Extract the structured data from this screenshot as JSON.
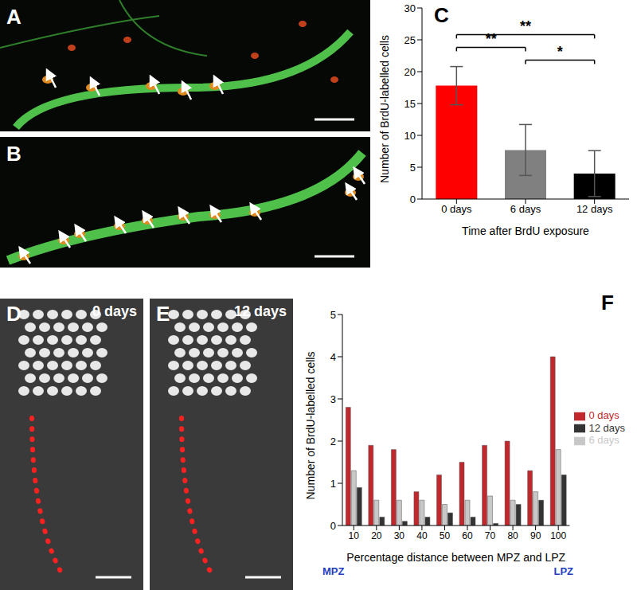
{
  "image_panels": [
    {
      "label": "A"
    },
    {
      "label": "B"
    },
    {
      "label": "D",
      "caption": "0 days"
    },
    {
      "label": "E",
      "caption": "12 days"
    }
  ],
  "chart_data": [
    {
      "type": "bar",
      "panel_label": "C",
      "categories": [
        "0 days",
        "6 days",
        "12 days"
      ],
      "values": [
        17.8,
        7.7,
        4.0
      ],
      "errors": [
        3.0,
        4.0,
        3.6
      ],
      "colors": [
        "#ff0000",
        "#808080",
        "#000000"
      ],
      "ylim": [
        0,
        30
      ],
      "yticks": [
        0,
        5,
        10,
        15,
        20,
        25,
        30
      ],
      "x_label": "Time after BrdU exposure",
      "y_label": "Number of BrdU-labelled cells",
      "significance": [
        {
          "from": "6 days",
          "to": "12 days",
          "label": "*"
        },
        {
          "from": "0 days",
          "to": "6 days",
          "label": "**"
        },
        {
          "from": "0 days",
          "to": "12 days",
          "label": "**"
        }
      ]
    },
    {
      "type": "bar",
      "panel_label": "F",
      "categories": [
        10,
        20,
        30,
        40,
        50,
        60,
        70,
        80,
        90,
        100
      ],
      "series": [
        {
          "name": "0 days",
          "color": "#c0282d",
          "values": [
            2.8,
            1.9,
            1.8,
            0.8,
            1.2,
            1.5,
            1.9,
            2.0,
            1.3,
            4.0
          ]
        },
        {
          "name": "6 days",
          "color": "#c8c8c8",
          "values": [
            1.3,
            0.6,
            0.6,
            0.6,
            0.5,
            0.6,
            0.7,
            0.6,
            0.8,
            1.8
          ]
        },
        {
          "name": "12 days",
          "color": "#333333",
          "values": [
            0.9,
            0.2,
            0.1,
            0.2,
            0.3,
            0.2,
            0.05,
            0.5,
            0.6,
            1.2
          ]
        }
      ],
      "ylim": [
        0,
        5
      ],
      "yticks": [
        0,
        1,
        2,
        3,
        4,
        5
      ],
      "x_label": "Percentage distance between MPZ and LPZ",
      "y_label": "Number of BrdU-labelled cells",
      "x_end_labels": [
        "MPZ",
        "LPZ"
      ],
      "legend": "right"
    }
  ]
}
